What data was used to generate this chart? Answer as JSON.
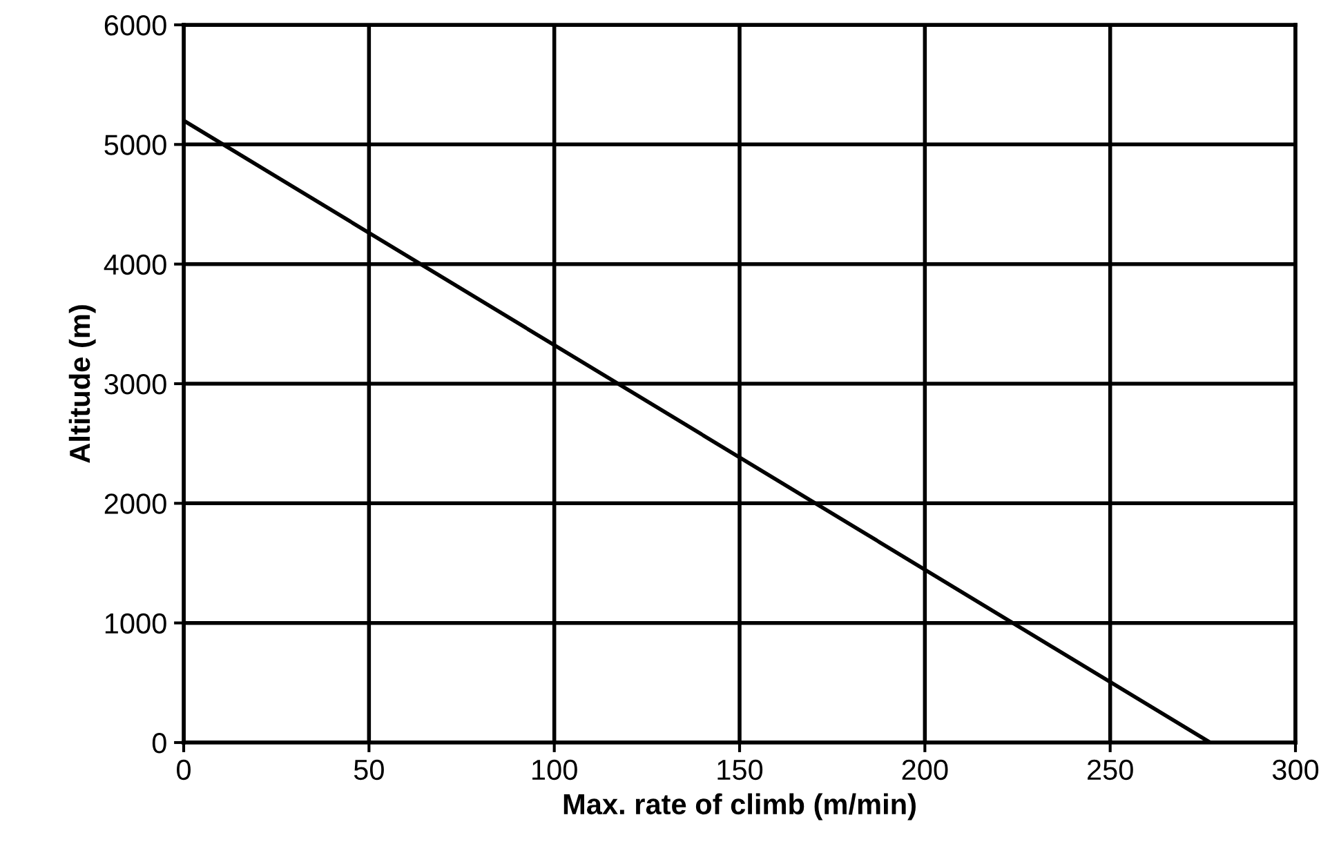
{
  "chart_data": {
    "type": "line",
    "xlabel": "Max. rate of climb (m/min)",
    "ylabel": "Altitude (m)",
    "series": [
      {
        "color": "#000000",
        "x": [
          0,
          277
        ],
        "values": [
          5200,
          0
        ]
      }
    ],
    "xlim": [
      0,
      300
    ],
    "ylim": [
      0,
      6000
    ],
    "xticks": [
      0,
      50,
      100,
      150,
      200,
      250,
      300
    ],
    "yticks": [
      0,
      1000,
      2000,
      3000,
      4000,
      5000,
      6000
    ],
    "grid": true,
    "marker": "none",
    "line_style": "solid"
  }
}
